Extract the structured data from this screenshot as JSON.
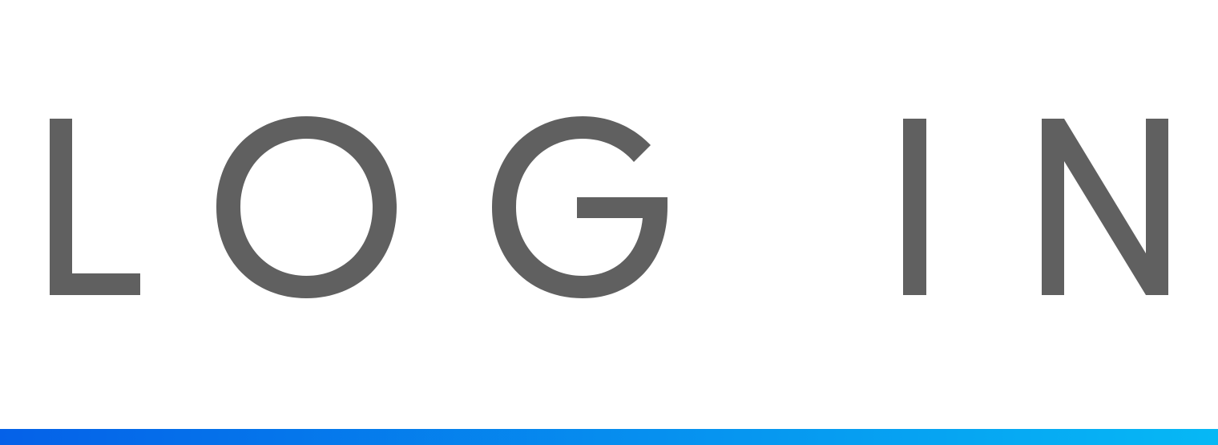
{
  "login_button": {
    "label": "LOG IN"
  },
  "colors": {
    "text": "#606060",
    "background": "#ffffff",
    "underline_gradient_start": "#0561e8",
    "underline_gradient_end": "#06b8f5"
  }
}
